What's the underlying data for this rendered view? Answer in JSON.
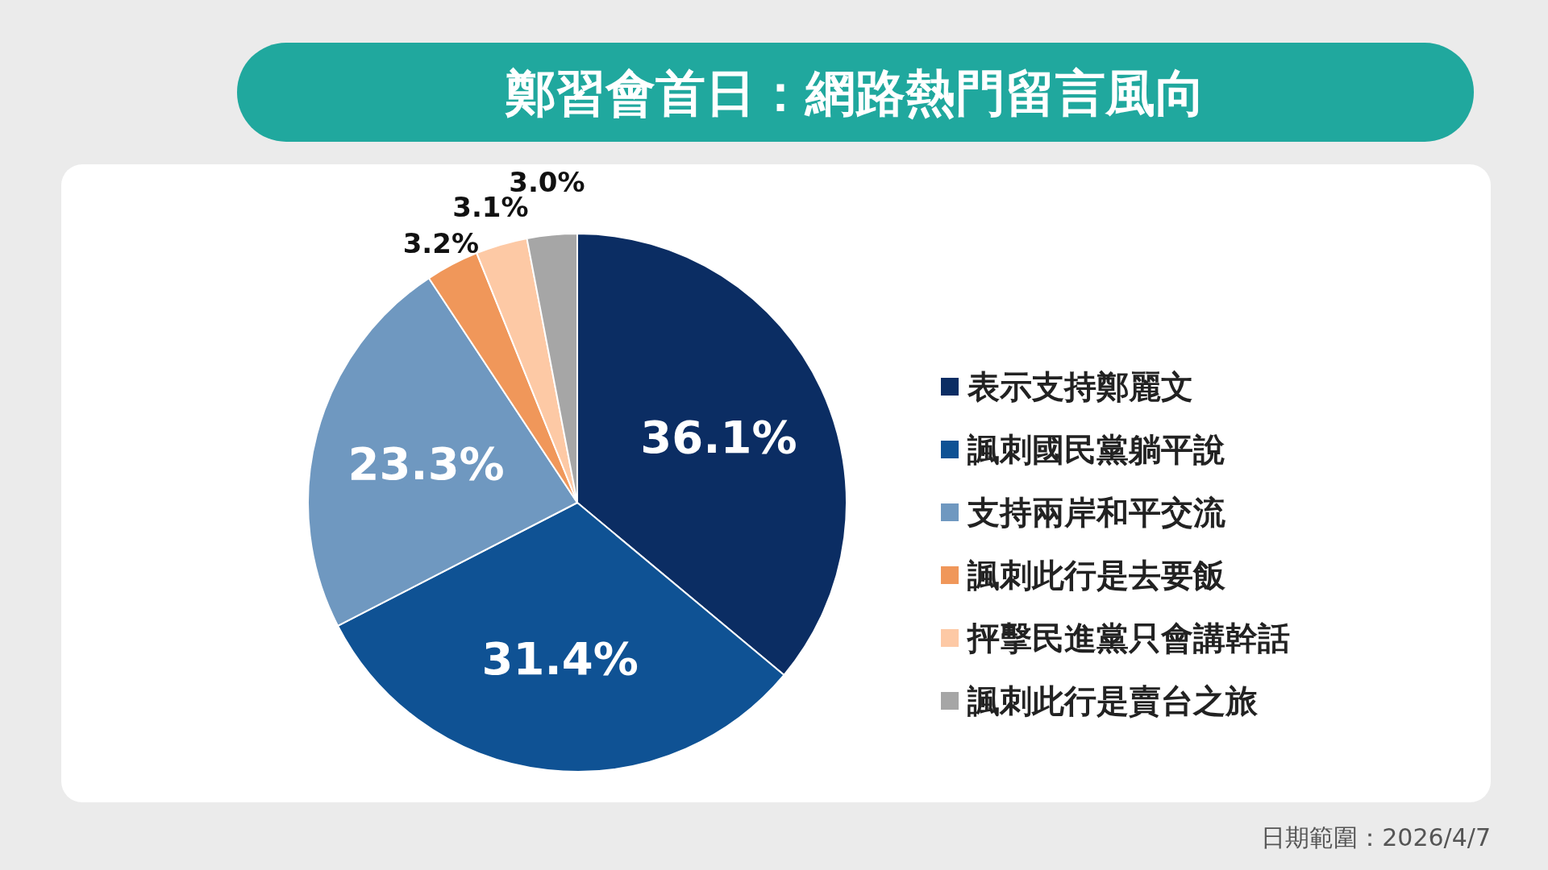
{
  "chart_data": {
    "type": "pie",
    "title": "鄭習會首日：網路熱門留言風向",
    "categories": [
      "表示支持鄭麗文",
      "諷刺國民黨躺平說",
      "支持兩岸和平交流",
      "諷刺此行是去要飯",
      "抨擊民進黨只會講幹話",
      "諷刺此行是賣台之旅"
    ],
    "values": [
      36.1,
      31.4,
      23.3,
      3.2,
      3.1,
      3.0
    ],
    "value_labels": [
      "36.1%",
      "31.4%",
      "23.3%",
      "3.2%",
      "3.1%",
      "3.0%"
    ],
    "colors": [
      "#0b2d63",
      "#0f5294",
      "#6f98c0",
      "#f0975a",
      "#fdc9a5",
      "#a6a6a6"
    ],
    "legend": "right",
    "annotations": [
      "日期範圍：2026/4/7"
    ]
  }
}
